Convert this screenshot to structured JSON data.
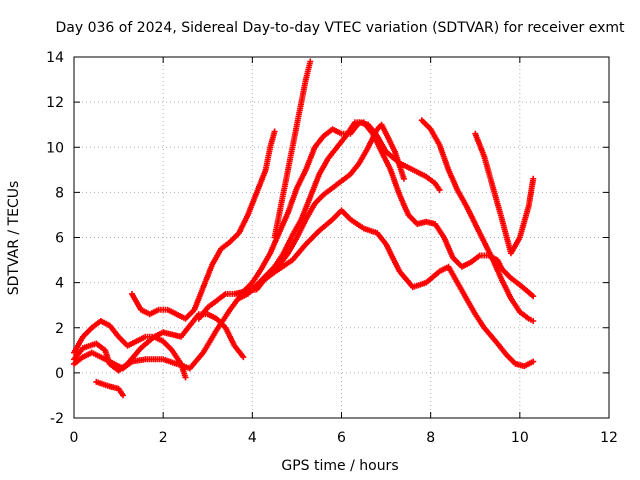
{
  "chart_data": {
    "type": "scatter",
    "title": "Day 036 of 2024, Sidereal Day-to-day VTEC variation (SDTVAR) for receiver exmt",
    "xlabel": "GPS time / hours",
    "ylabel": "SDTVAR / TECUs",
    "xlim": [
      0,
      12
    ],
    "ylim": [
      -2,
      14
    ],
    "xticks": [
      0,
      2,
      4,
      6,
      8,
      10,
      12
    ],
    "yticks": [
      -2,
      0,
      2,
      4,
      6,
      8,
      10,
      12,
      14
    ],
    "grid": true,
    "marker": "+",
    "series_color": "#ff0000",
    "series": [
      {
        "name": "track-1",
        "points": [
          [
            0.0,
            0.4
          ],
          [
            0.2,
            0.7
          ],
          [
            0.4,
            0.9
          ],
          [
            0.7,
            0.6
          ],
          [
            0.9,
            0.4
          ],
          [
            1.1,
            0.2
          ],
          [
            1.3,
            0.5
          ],
          [
            1.6,
            0.6
          ],
          [
            2.0,
            0.6
          ],
          [
            2.3,
            0.4
          ],
          [
            2.6,
            0.2
          ],
          [
            2.9,
            0.9
          ],
          [
            3.2,
            1.9
          ],
          [
            3.5,
            2.8
          ],
          [
            3.8,
            3.6
          ],
          [
            4.1,
            3.7
          ],
          [
            4.3,
            4.2
          ],
          [
            4.6,
            4.6
          ],
          [
            4.9,
            5.0
          ],
          [
            5.2,
            5.7
          ],
          [
            5.5,
            6.3
          ],
          [
            5.8,
            6.8
          ],
          [
            6.0,
            7.2
          ],
          [
            6.2,
            6.8
          ],
          [
            6.5,
            6.4
          ],
          [
            6.8,
            6.2
          ],
          [
            7.0,
            5.7
          ],
          [
            7.3,
            4.5
          ],
          [
            7.6,
            3.8
          ],
          [
            7.9,
            4.0
          ],
          [
            8.2,
            4.5
          ],
          [
            8.4,
            4.7
          ],
          [
            8.6,
            4.0
          ],
          [
            8.8,
            3.3
          ],
          [
            9.0,
            2.6
          ],
          [
            9.2,
            2.0
          ],
          [
            9.5,
            1.3
          ],
          [
            9.7,
            0.8
          ],
          [
            9.9,
            0.4
          ],
          [
            10.1,
            0.3
          ],
          [
            10.3,
            0.5
          ]
        ]
      },
      {
        "name": "track-2",
        "points": [
          [
            0.0,
            0.9
          ],
          [
            0.2,
            1.6
          ],
          [
            0.4,
            2.0
          ],
          [
            0.6,
            2.3
          ],
          [
            0.8,
            2.1
          ],
          [
            1.0,
            1.6
          ],
          [
            1.2,
            1.2
          ],
          [
            1.4,
            1.4
          ],
          [
            1.6,
            1.6
          ],
          [
            1.8,
            1.6
          ],
          [
            2.0,
            1.4
          ],
          [
            2.2,
            1.0
          ],
          [
            2.4,
            0.4
          ],
          [
            2.5,
            -0.2
          ]
        ]
      },
      {
        "name": "track-3",
        "points": [
          [
            0.0,
            0.6
          ],
          [
            0.2,
            1.1
          ],
          [
            0.5,
            1.3
          ],
          [
            0.7,
            1.0
          ],
          [
            0.8,
            0.4
          ],
          [
            1.0,
            0.1
          ],
          [
            1.2,
            0.4
          ],
          [
            1.5,
            1.1
          ],
          [
            1.8,
            1.6
          ],
          [
            2.0,
            1.8
          ],
          [
            2.2,
            1.7
          ],
          [
            2.4,
            1.6
          ],
          [
            2.6,
            2.1
          ],
          [
            2.8,
            2.6
          ],
          [
            3.0,
            2.6
          ],
          [
            3.2,
            2.4
          ],
          [
            3.4,
            2.0
          ],
          [
            3.6,
            1.2
          ],
          [
            3.8,
            0.7
          ]
        ]
      },
      {
        "name": "track-4",
        "points": [
          [
            0.5,
            -0.4
          ],
          [
            0.8,
            -0.6
          ],
          [
            1.0,
            -0.7
          ],
          [
            1.1,
            -1.0
          ]
        ]
      },
      {
        "name": "track-5",
        "points": [
          [
            1.3,
            3.5
          ],
          [
            1.5,
            2.8
          ],
          [
            1.7,
            2.6
          ],
          [
            1.9,
            2.8
          ],
          [
            2.1,
            2.8
          ],
          [
            2.3,
            2.6
          ],
          [
            2.5,
            2.4
          ],
          [
            2.7,
            2.8
          ],
          [
            2.9,
            3.8
          ],
          [
            3.1,
            4.8
          ],
          [
            3.3,
            5.5
          ],
          [
            3.5,
            5.8
          ],
          [
            3.7,
            6.2
          ],
          [
            3.9,
            7.0
          ],
          [
            4.1,
            8.0
          ],
          [
            4.3,
            9.0
          ],
          [
            4.4,
            10.0
          ],
          [
            4.5,
            10.7
          ]
        ]
      },
      {
        "name": "track-6",
        "points": [
          [
            2.8,
            2.4
          ],
          [
            3.0,
            2.9
          ],
          [
            3.2,
            3.2
          ],
          [
            3.4,
            3.5
          ],
          [
            3.6,
            3.5
          ],
          [
            3.8,
            3.6
          ],
          [
            4.0,
            4.0
          ],
          [
            4.2,
            4.6
          ],
          [
            4.4,
            5.3
          ],
          [
            4.6,
            6.2
          ],
          [
            4.8,
            7.1
          ],
          [
            5.0,
            8.2
          ],
          [
            5.2,
            9.0
          ],
          [
            5.4,
            10.0
          ],
          [
            5.6,
            10.5
          ],
          [
            5.8,
            10.8
          ],
          [
            6.0,
            10.6
          ],
          [
            6.2,
            10.6
          ],
          [
            6.4,
            11.1
          ],
          [
            6.6,
            11.0
          ],
          [
            6.8,
            10.5
          ],
          [
            7.0,
            9.8
          ],
          [
            7.3,
            9.3
          ],
          [
            7.6,
            9.0
          ],
          [
            7.9,
            8.7
          ],
          [
            8.1,
            8.4
          ],
          [
            8.2,
            8.1
          ]
        ]
      },
      {
        "name": "track-7",
        "points": [
          [
            4.2,
            4.0
          ],
          [
            4.5,
            4.5
          ],
          [
            4.8,
            5.3
          ],
          [
            5.0,
            6.0
          ],
          [
            5.2,
            6.8
          ],
          [
            5.4,
            7.5
          ],
          [
            5.6,
            7.9
          ],
          [
            5.8,
            8.2
          ],
          [
            6.0,
            8.5
          ],
          [
            6.2,
            8.8
          ],
          [
            6.4,
            9.3
          ],
          [
            6.6,
            10.0
          ],
          [
            6.8,
            10.8
          ],
          [
            6.9,
            11.0
          ],
          [
            7.0,
            10.6
          ],
          [
            7.2,
            9.8
          ],
          [
            7.4,
            8.6
          ]
        ]
      },
      {
        "name": "track-8",
        "points": [
          [
            3.7,
            3.3
          ],
          [
            3.9,
            3.5
          ],
          [
            4.1,
            3.9
          ],
          [
            4.3,
            4.3
          ],
          [
            4.5,
            4.7
          ],
          [
            4.7,
            5.3
          ],
          [
            4.9,
            6.1
          ],
          [
            5.1,
            6.8
          ],
          [
            5.3,
            7.8
          ],
          [
            5.5,
            8.8
          ],
          [
            5.7,
            9.5
          ],
          [
            5.9,
            10.0
          ],
          [
            6.1,
            10.5
          ],
          [
            6.3,
            11.1
          ],
          [
            6.5,
            11.1
          ],
          [
            6.7,
            10.6
          ],
          [
            6.9,
            9.8
          ],
          [
            7.1,
            9.0
          ],
          [
            7.3,
            7.9
          ],
          [
            7.5,
            7.0
          ],
          [
            7.7,
            6.6
          ],
          [
            7.9,
            6.7
          ],
          [
            8.1,
            6.6
          ],
          [
            8.3,
            6.0
          ],
          [
            8.5,
            5.1
          ],
          [
            8.7,
            4.7
          ],
          [
            8.9,
            4.9
          ],
          [
            9.1,
            5.2
          ],
          [
            9.3,
            5.2
          ],
          [
            9.5,
            5.0
          ],
          [
            9.6,
            4.6
          ],
          [
            9.8,
            4.2
          ],
          [
            10.0,
            3.9
          ],
          [
            10.3,
            3.4
          ]
        ]
      },
      {
        "name": "track-9",
        "points": [
          [
            4.5,
            6.0
          ],
          [
            4.6,
            7.0
          ],
          [
            4.7,
            8.0
          ],
          [
            4.8,
            9.0
          ],
          [
            4.9,
            10.0
          ],
          [
            5.0,
            11.0
          ],
          [
            5.1,
            12.0
          ],
          [
            5.2,
            13.0
          ],
          [
            5.3,
            13.8
          ]
        ]
      },
      {
        "name": "track-10",
        "points": [
          [
            7.8,
            11.2
          ],
          [
            8.0,
            10.8
          ],
          [
            8.2,
            10.1
          ],
          [
            8.4,
            9.0
          ],
          [
            8.6,
            8.1
          ],
          [
            8.8,
            7.4
          ],
          [
            9.0,
            6.6
          ],
          [
            9.2,
            5.8
          ],
          [
            9.4,
            5.0
          ],
          [
            9.6,
            4.1
          ],
          [
            9.8,
            3.3
          ],
          [
            10.0,
            2.7
          ],
          [
            10.2,
            2.4
          ],
          [
            10.3,
            2.3
          ]
        ]
      },
      {
        "name": "track-11",
        "points": [
          [
            9.0,
            10.6
          ],
          [
            9.2,
            9.6
          ],
          [
            9.4,
            8.2
          ],
          [
            9.6,
            6.8
          ],
          [
            9.8,
            5.3
          ],
          [
            10.0,
            6.0
          ],
          [
            10.2,
            7.4
          ],
          [
            10.3,
            8.6
          ]
        ]
      }
    ]
  }
}
